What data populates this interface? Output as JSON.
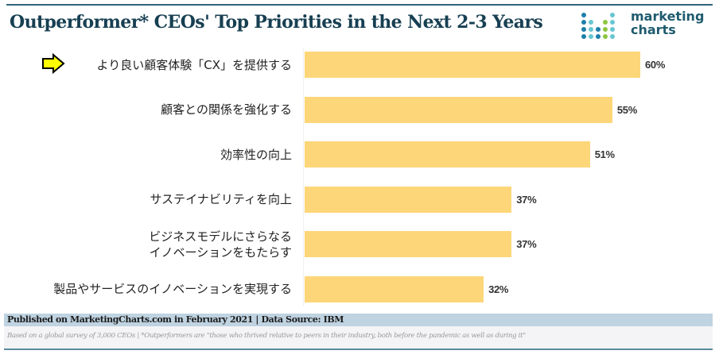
{
  "header": {
    "title": "Outperformer* CEOs' Top Priorities in the Next 2-3 Years",
    "logo_line1": "marketing",
    "logo_line2": "charts",
    "logo_colors": [
      "#1e7fa8",
      "#67c6d1",
      "#8cc63f"
    ]
  },
  "chart_data": {
    "type": "bar",
    "orientation": "horizontal",
    "title": "Outperformer* CEOs' Top Priorities in the Next 2-3 Years",
    "xlabel": "",
    "ylabel": "",
    "xlim": [
      0,
      60
    ],
    "grid": false,
    "legend": "none",
    "categories": [
      "より良い顧客体験「CX」を提供する",
      "顧客との関係を強化する",
      "効率性の向上",
      "サステイナビリティを向上",
      "ビジネスモデルにさらなる\nイノベーションをもたらす",
      "製品やサービスのイノベーションを実現する"
    ],
    "values": [
      60,
      55,
      51,
      37,
      37,
      32
    ],
    "value_labels": [
      "60%",
      "55%",
      "51%",
      "37%",
      "37%",
      "32%"
    ],
    "bar_color": "#fdd679",
    "annotations": [
      {
        "type": "arrow",
        "target": "より良い顧客体験「CX」を提供する",
        "color": "#ffff00"
      }
    ]
  },
  "footer": {
    "published": "Published on MarketingCharts.com in February 2021 | Data Source: IBM",
    "note": "Based on a global survey of 3,000 CEOs | *Outperformers are \"those who thrived relative to peers in their industry, both before the pandemic as well as during it\""
  }
}
